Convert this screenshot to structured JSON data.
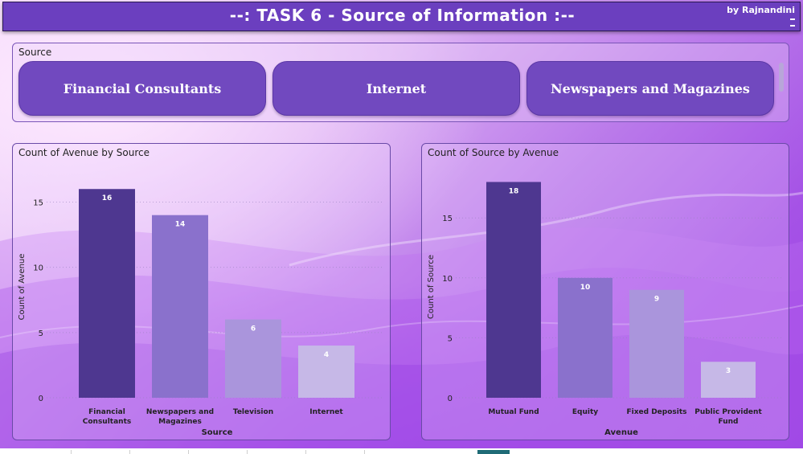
{
  "header": {
    "title": "--: TASK 6 - Source of Information :--",
    "byline": "by Rajnandini"
  },
  "slicer": {
    "label": "Source",
    "options": [
      "Financial Consultants",
      "Internet",
      "Newspapers and Magazines"
    ]
  },
  "colors": {
    "title_bar": "#6b3fbf",
    "chip": "#7149bf",
    "bar_1": "#4e3790",
    "bar_2": "#8a71cc",
    "bar_3": "#aa95dc",
    "bar_4": "#c6b8e7"
  },
  "chart_data": [
    {
      "type": "bar",
      "title": "Count of Avenue by Source",
      "xlabel": "Source",
      "ylabel": "Count of Avenue",
      "categories": [
        "Financial Consultants",
        "Newspapers and Magazines",
        "Television",
        "Internet"
      ],
      "values": [
        16,
        14,
        6,
        4
      ],
      "data_labels": [
        "16",
        "14",
        "6",
        "4"
      ],
      "yticks": [
        0,
        5,
        10,
        15
      ],
      "ylim": [
        0,
        17
      ],
      "grid": true
    },
    {
      "type": "bar",
      "title": "Count of Source by Avenue",
      "xlabel": "Avenue",
      "ylabel": "Count of Source",
      "categories": [
        "Mutual Fund",
        "Equity",
        "Fixed Deposits",
        "Public Provident Fund"
      ],
      "values": [
        18,
        10,
        9,
        3
      ],
      "data_labels": [
        "18",
        "10",
        "9",
        "3"
      ],
      "yticks": [
        0,
        5,
        10,
        15
      ],
      "ylim": [
        0,
        18.5
      ],
      "grid": true
    }
  ]
}
